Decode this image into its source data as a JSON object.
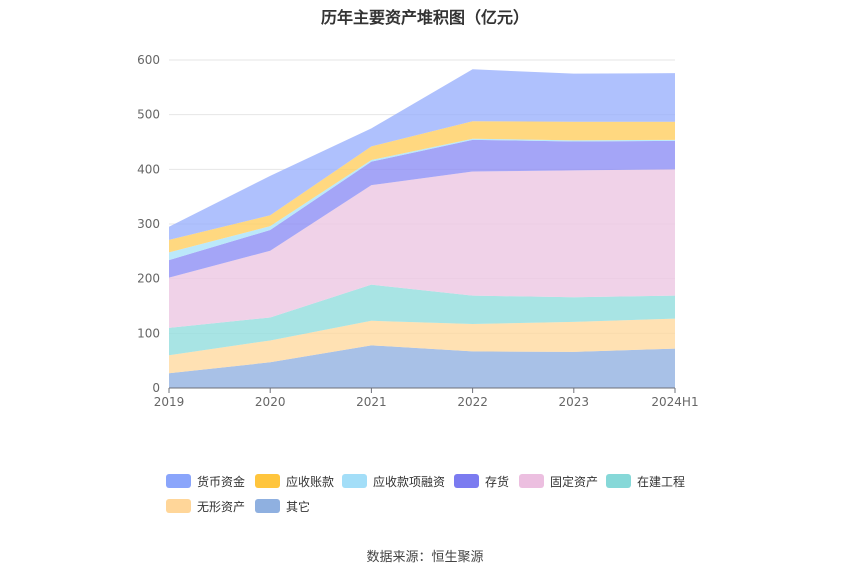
{
  "chart_data": {
    "type": "area",
    "stacked": true,
    "title": "历年主要资产堆积图（亿元）",
    "categories": [
      "2019",
      "2020",
      "2021",
      "2022",
      "2023",
      "2024H1"
    ],
    "ylim": [
      0,
      600
    ],
    "yticks": [
      0,
      100,
      200,
      300,
      400,
      500,
      600
    ],
    "grid": true,
    "legend_position": "bottom",
    "series": [
      {
        "name": "其它",
        "color": "#8fb0e0",
        "values": [
          27,
          47,
          78,
          67,
          66,
          72
        ]
      },
      {
        "name": "无形资产",
        "color": "#ffd89e",
        "values": [
          33,
          40,
          45,
          50,
          55,
          55
        ]
      },
      {
        "name": "在建工程",
        "color": "#8fdcdc",
        "values": [
          50,
          42,
          66,
          52,
          45,
          42
        ]
      },
      {
        "name": "固定资产",
        "color": "#ecc5e2",
        "values": [
          92,
          122,
          182,
          227,
          232,
          231
        ]
      },
      {
        "name": "存货",
        "color": "#8a8cf5",
        "values": [
          32,
          38,
          43,
          58,
          53,
          52
        ]
      },
      {
        "name": "应收款项融资",
        "color": "#a8e2f8",
        "values": [
          14,
          7,
          3,
          2,
          2,
          2
        ]
      },
      {
        "name": "应收账款",
        "color": "#ffcd5c",
        "values": [
          23,
          20,
          25,
          32,
          34,
          33
        ]
      },
      {
        "name": "货币资金",
        "color": "#98b0fd",
        "values": [
          24,
          72,
          33,
          95,
          88,
          89
        ]
      }
    ]
  },
  "legend": [
    {
      "name": "货币资金",
      "color": "#8aa5fb"
    },
    {
      "name": "应收账款",
      "color": "#ffc53d"
    },
    {
      "name": "应收款项融资",
      "color": "#a3def8"
    },
    {
      "name": "存货",
      "color": "#7b7bf0"
    },
    {
      "name": "固定资产",
      "color": "#ecbfe0"
    },
    {
      "name": "在建工程",
      "color": "#86d8d8"
    },
    {
      "name": "无形资产",
      "color": "#ffd699"
    },
    {
      "name": "其它",
      "color": "#8fb0e0"
    }
  ],
  "source": "数据来源：恒生聚源"
}
